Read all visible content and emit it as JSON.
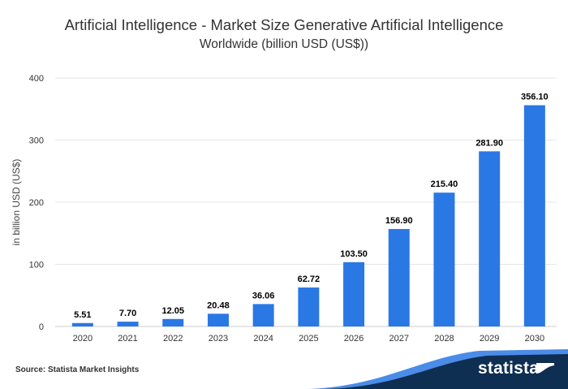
{
  "chart_data": {
    "type": "bar",
    "title": "Artificial Intelligence - Market Size Generative Artificial Intelligence",
    "subtitle": "Worldwide (billion USD (US$))",
    "xlabel": "",
    "ylabel": "in billion USD (US$)",
    "ylim": [
      0,
      400
    ],
    "yticks": [
      0,
      100,
      200,
      300,
      400
    ],
    "grid": true,
    "categories": [
      "2020",
      "2021",
      "2022",
      "2023",
      "2024",
      "2025",
      "2026",
      "2027",
      "2028",
      "2029",
      "2030"
    ],
    "values": [
      5.51,
      7.7,
      12.05,
      20.48,
      36.06,
      62.72,
      103.5,
      156.9,
      215.4,
      281.9,
      356.1
    ],
    "value_labels": [
      "5.51",
      "7.70",
      "12.05",
      "20.48",
      "36.06",
      "62.72",
      "103.50",
      "156.90",
      "215.40",
      "281.90",
      "356.10"
    ],
    "bar_color": "#2a78e4"
  },
  "footer": {
    "source": "Source: Statista Market Insights",
    "brand": "statista"
  },
  "colors": {
    "brand_dark": "#0e2e52",
    "brand_blue": "#2a78e4"
  }
}
